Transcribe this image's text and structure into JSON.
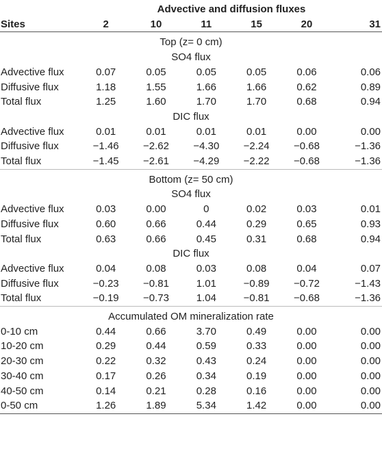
{
  "table": {
    "title": "Advective and diffusion fluxes",
    "header": [
      "Sites",
      "2",
      "10",
      "11",
      "15",
      "20",
      "31"
    ],
    "top": {
      "heading": "Top (z= 0 cm)",
      "so4_heading": "SO4 flux",
      "so4_rows": [
        [
          "Advective flux",
          "0.07",
          "0.05",
          "0.05",
          "0.05",
          "0.06",
          "0.06"
        ],
        [
          "Diffusive flux",
          "1.18",
          "1.55",
          "1.66",
          "1.66",
          "0.62",
          "0.89"
        ],
        [
          "Total flux",
          "1.25",
          "1.60",
          "1.70",
          "1.70",
          "0.68",
          "0.94"
        ]
      ],
      "dic_heading": "DIC flux",
      "dic_rows": [
        [
          "Advective flux",
          "0.01",
          "0.01",
          "0.01",
          "0.01",
          "0.00",
          "0.00"
        ],
        [
          "Diffusive flux",
          "−1.46",
          "−2.62",
          "−4.30",
          "−2.24",
          "−0.68",
          "−1.36"
        ],
        [
          "Total flux",
          "−1.45",
          "−2.61",
          "−4.29",
          "−2.22",
          "−0.68",
          "−1.36"
        ]
      ]
    },
    "bottom": {
      "heading": "Bottom (z= 50 cm)",
      "so4_heading": "SO4 flux",
      "so4_rows": [
        [
          "Advective flux",
          "0.03",
          "0.00",
          "0",
          "0.02",
          "0.03",
          "0.01"
        ],
        [
          "Diffusive flux",
          "0.60",
          "0.66",
          "0.44",
          "0.29",
          "0.65",
          "0.93"
        ],
        [
          "Total flux",
          "0.63",
          "0.66",
          "0.45",
          "0.31",
          "0.68",
          "0.94"
        ]
      ],
      "dic_heading": "DIC flux",
      "dic_rows": [
        [
          "Advective flux",
          "0.04",
          "0.08",
          "0.03",
          "0.08",
          "0.04",
          "0.07"
        ],
        [
          "Diffusive flux",
          "−0.23",
          "−0.81",
          "1.01",
          "−0.89",
          "−0.72",
          "−1.43"
        ],
        [
          "Total flux",
          "−0.19",
          "−0.73",
          "1.04",
          "−0.81",
          "−0.68",
          "−1.36"
        ]
      ]
    },
    "om": {
      "heading": "Accumulated OM mineralization rate",
      "rows": [
        [
          "0-10 cm",
          "0.44",
          "0.66",
          "3.70",
          "0.49",
          "0.00",
          "0.00"
        ],
        [
          "10-20 cm",
          "0.29",
          "0.44",
          "0.59",
          "0.33",
          "0.00",
          "0.00"
        ],
        [
          "20-30 cm",
          "0.22",
          "0.32",
          "0.43",
          "0.24",
          "0.00",
          "0.00"
        ],
        [
          "30-40 cm",
          "0.17",
          "0.26",
          "0.34",
          "0.19",
          "0.00",
          "0.00"
        ],
        [
          "40-50 cm",
          "0.14",
          "0.21",
          "0.28",
          "0.16",
          "0.00",
          "0.00"
        ],
        [
          "0-50 cm",
          "1.26",
          "1.89",
          "5.34",
          "1.42",
          "0.00",
          "0.00"
        ]
      ]
    }
  }
}
